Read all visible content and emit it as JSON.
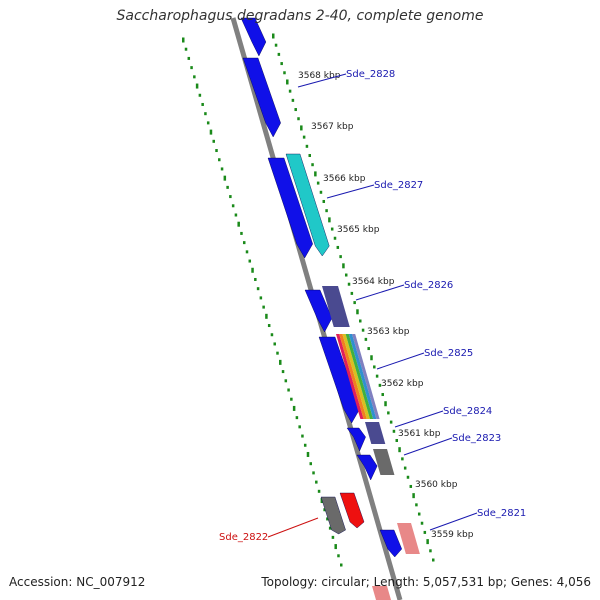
{
  "title": "Saccharophagus degradans 2-40, complete genome",
  "accession_text": "Accession: NC_007912",
  "summary_text": "Topology: circular; Length: 5,057,531 bp; Genes: 4,056",
  "colors": {
    "backbone": "#808080",
    "gc_dots": "#1a8a1a",
    "forward_gene": "#1010e8",
    "cyan_gene": "#20c8c8",
    "slate_gene": "#4a4a90",
    "grey_gene": "#6a6a6a",
    "red_gene": "#ee1010",
    "pink_gene": "#e88888",
    "label_blue": "#1a1ab0",
    "label_red": "#cc1010"
  },
  "scale_ticks": [
    "3568 kbp",
    "3567 kbp",
    "3566 kbp",
    "3565 kbp",
    "3564 kbp",
    "3563 kbp",
    "3562 kbp",
    "3561 kbp",
    "3560 kbp",
    "3559 kbp"
  ],
  "gene_labels": [
    {
      "name": "Sde_2828",
      "color": "blue"
    },
    {
      "name": "Sde_2827",
      "color": "blue"
    },
    {
      "name": "Sde_2826",
      "color": "blue"
    },
    {
      "name": "Sde_2825",
      "color": "blue"
    },
    {
      "name": "Sde_2824",
      "color": "blue"
    },
    {
      "name": "Sde_2823",
      "color": "blue"
    },
    {
      "name": "Sde_2822",
      "color": "red"
    },
    {
      "name": "Sde_2821",
      "color": "blue"
    }
  ]
}
